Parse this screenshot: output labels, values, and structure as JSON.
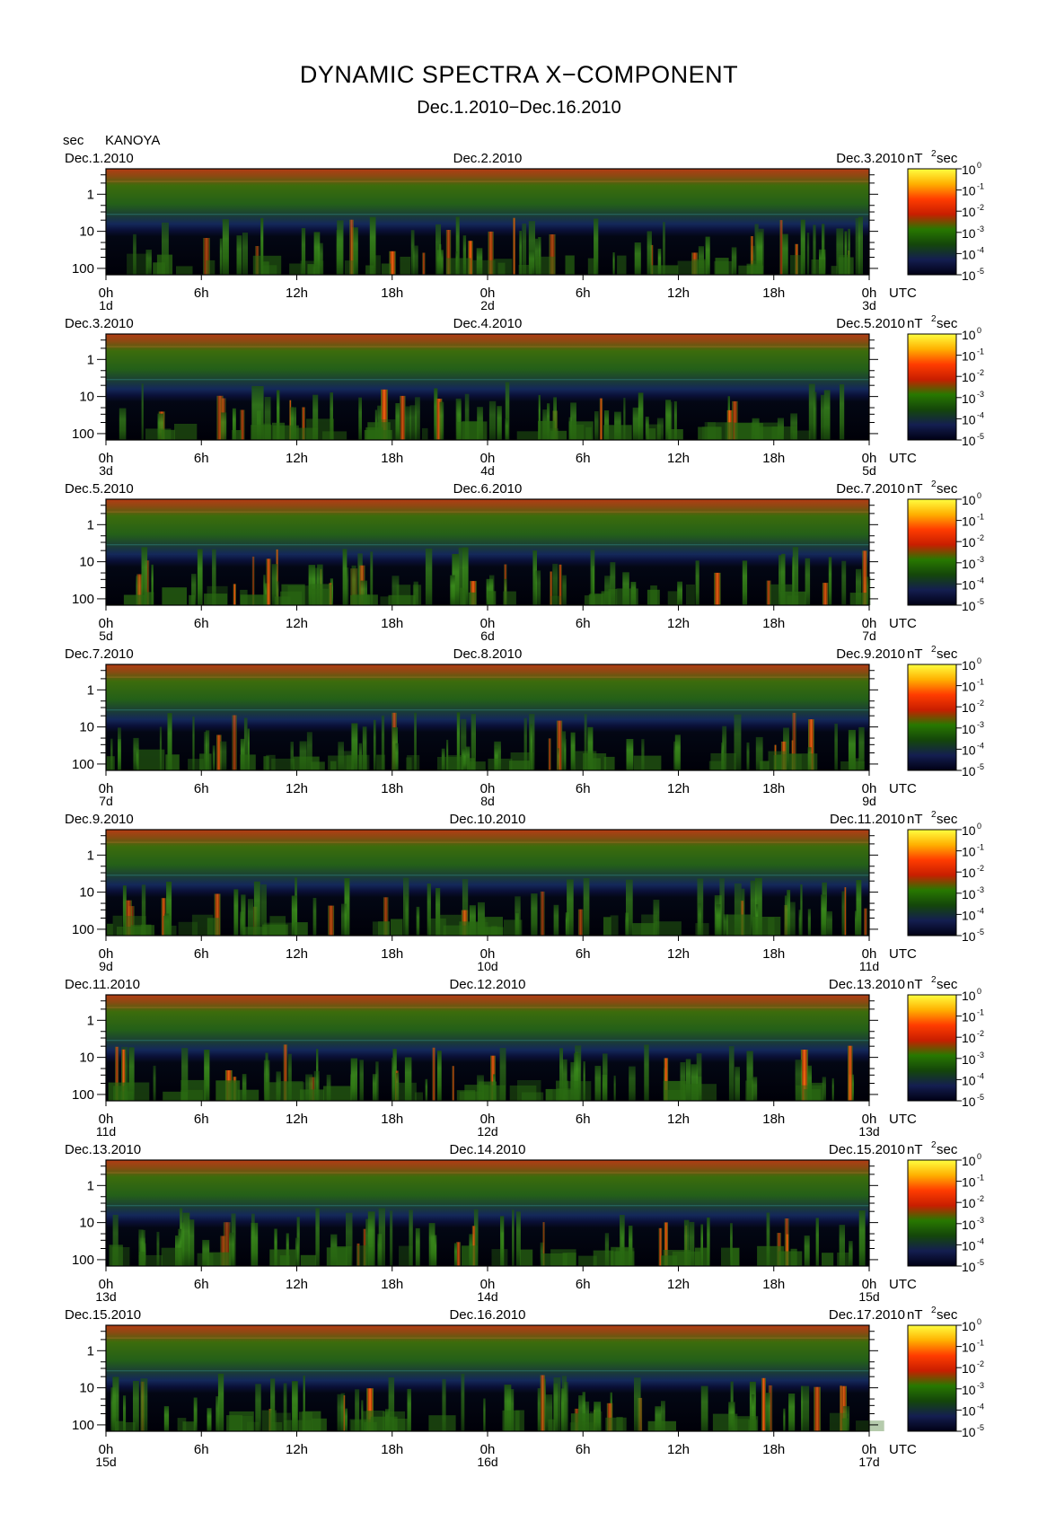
{
  "header": {
    "title": "DYNAMIC SPECTRA X−COMPONENT",
    "subtitle": "Dec.1.2010−Dec.16.2010",
    "unit": "sec",
    "station": "KANOYA"
  },
  "chart_data": {
    "type": "heatmap",
    "y_label": "sec",
    "y_ticks": [
      "1",
      "10",
      "100"
    ],
    "y_axis_scale": "log",
    "x_ticks": [
      "0h",
      "6h",
      "12h",
      "18h",
      "0h",
      "6h",
      "12h",
      "18h",
      "0h"
    ],
    "x_unit": "UTC",
    "colorbar": {
      "unit_base": "nT",
      "unit_exp": "2",
      "unit_suffix": "sec",
      "scale": "log",
      "tick_exponents": [
        "0",
        "-1",
        "-2",
        "-3",
        "-4",
        "-5"
      ],
      "colors_high_to_low": [
        "#ffff40",
        "#ffb000",
        "#ff3c00",
        "#c81e00",
        "#287800",
        "#14460a",
        "#141e50",
        "#000014"
      ]
    },
    "panels": [
      {
        "date_left": "Dec.1.2010",
        "date_mid": "Dec.2.2010",
        "date_right": "Dec.3.2010",
        "day_start": "1d",
        "day_mid": "2d",
        "day_end": "3d"
      },
      {
        "date_left": "Dec.3.2010",
        "date_mid": "Dec.4.2010",
        "date_right": "Dec.5.2010",
        "day_start": "3d",
        "day_mid": "4d",
        "day_end": "5d"
      },
      {
        "date_left": "Dec.5.2010",
        "date_mid": "Dec.6.2010",
        "date_right": "Dec.7.2010",
        "day_start": "5d",
        "day_mid": "6d",
        "day_end": "7d"
      },
      {
        "date_left": "Dec.7.2010",
        "date_mid": "Dec.8.2010",
        "date_right": "Dec.9.2010",
        "day_start": "7d",
        "day_mid": "8d",
        "day_end": "9d"
      },
      {
        "date_left": "Dec.9.2010",
        "date_mid": "Dec.10.2010",
        "date_right": "Dec.11.2010",
        "day_start": "9d",
        "day_mid": "10d",
        "day_end": "11d"
      },
      {
        "date_left": "Dec.11.2010",
        "date_mid": "Dec.12.2010",
        "date_right": "Dec.13.2010",
        "day_start": "11d",
        "day_mid": "12d",
        "day_end": "13d"
      },
      {
        "date_left": "Dec.13.2010",
        "date_mid": "Dec.14.2010",
        "date_right": "Dec.15.2010",
        "day_start": "13d",
        "day_mid": "14d",
        "day_end": "15d"
      },
      {
        "date_left": "Dec.15.2010",
        "date_mid": "Dec.16.2010",
        "date_right": "Dec.17.2010",
        "day_start": "15d",
        "day_mid": "16d",
        "day_end": "17d"
      }
    ]
  }
}
